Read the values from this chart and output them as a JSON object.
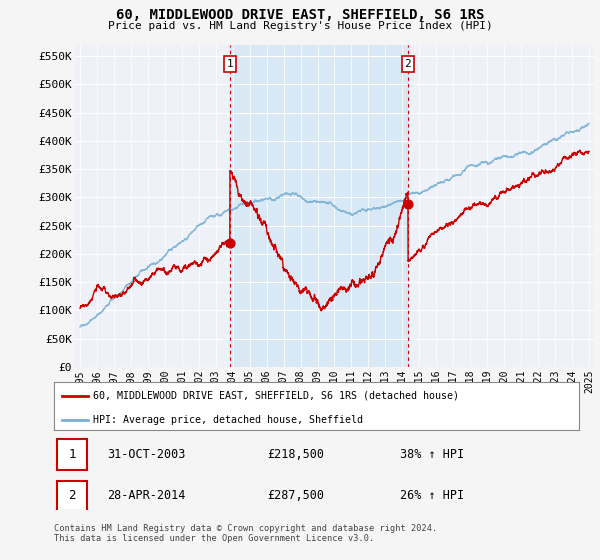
{
  "title": "60, MIDDLEWOOD DRIVE EAST, SHEFFIELD, S6 1RS",
  "subtitle": "Price paid vs. HM Land Registry's House Price Index (HPI)",
  "background_color": "#f5f5f5",
  "plot_bg_color": "#eef2f8",
  "grid_color": "#ffffff",
  "shade_color": "#d8e8f5",
  "ylim": [
    0,
    570000
  ],
  "yticks": [
    0,
    50000,
    100000,
    150000,
    200000,
    250000,
    300000,
    350000,
    400000,
    450000,
    500000,
    550000
  ],
  "x_start_year": 1995,
  "x_end_year": 2025,
  "sale_points": [
    {
      "year": 2003.83,
      "price": 218500,
      "label": "1"
    },
    {
      "year": 2014.33,
      "price": 287500,
      "label": "2"
    }
  ],
  "annotation1": {
    "label": "1",
    "date": "31-OCT-2003",
    "price": "£218,500",
    "change": "38% ↑ HPI"
  },
  "annotation2": {
    "label": "2",
    "date": "28-APR-2014",
    "price": "£287,500",
    "change": "26% ↑ HPI"
  },
  "legend_line1": "60, MIDDLEWOOD DRIVE EAST, SHEFFIELD, S6 1RS (detached house)",
  "legend_line2": "HPI: Average price, detached house, Sheffield",
  "footer": "Contains HM Land Registry data © Crown copyright and database right 2024.\nThis data is licensed under the Open Government Licence v3.0.",
  "line_color_red": "#cc0000",
  "hpi_color": "#7ab0d4"
}
